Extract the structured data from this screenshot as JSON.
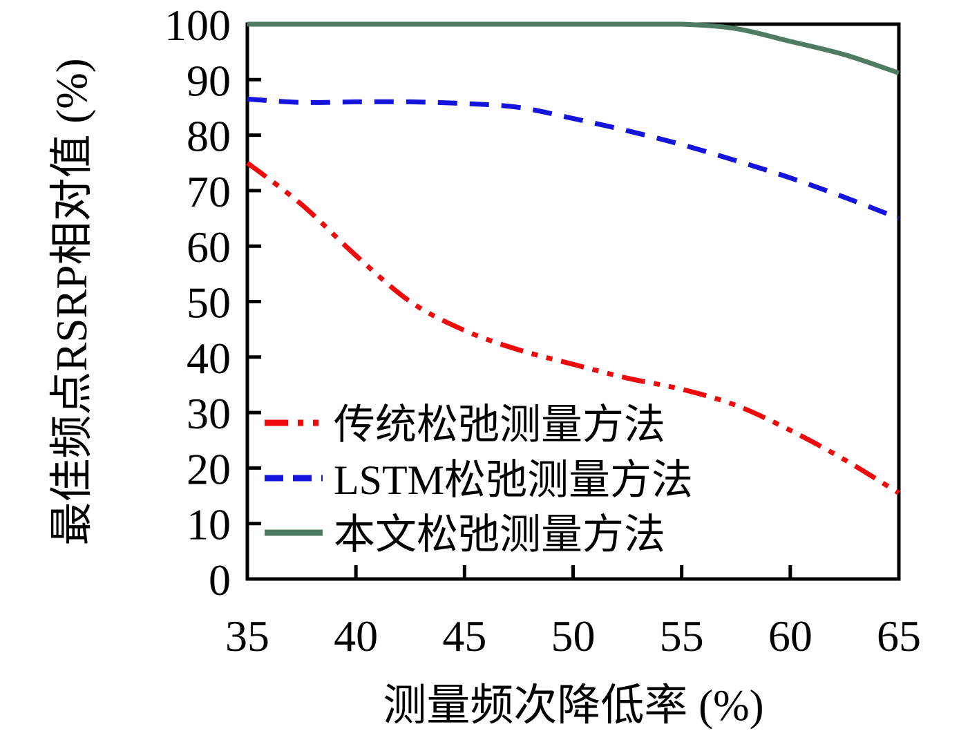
{
  "figure": {
    "background": "#ffffff",
    "axis_color": "#000000"
  },
  "chart_data": {
    "type": "line",
    "title": "",
    "xlabel": "测量频次降低率 (%)",
    "ylabel": "最佳频点RSRP相对值 (%)",
    "xlim": [
      35,
      65
    ],
    "ylim": [
      0,
      100
    ],
    "xticks": [
      35,
      40,
      45,
      50,
      55,
      60,
      65
    ],
    "yticks": [
      0,
      10,
      20,
      30,
      40,
      50,
      60,
      70,
      80,
      90,
      100
    ],
    "grid": false,
    "legend_position": "inside-lower-left",
    "x": [
      35,
      37.5,
      40,
      42.5,
      45,
      47.5,
      50,
      52.5,
      55,
      57.5,
      60,
      62.5,
      65
    ],
    "series": [
      {
        "name": "传统松弛测量方法",
        "color": "#ee0a0a",
        "dash": "dashdotdot",
        "values": [
          75,
          67.5,
          58.3,
          50.0,
          44.8,
          41.3,
          38.7,
          36.2,
          34.2,
          31.3,
          26.8,
          21.5,
          15.5
        ]
      },
      {
        "name": "LSTM松弛测量方法",
        "color": "#1414dd",
        "dash": "dashed",
        "values": [
          86.5,
          85.9,
          86.0,
          86.0,
          85.7,
          85.0,
          83.0,
          80.8,
          78.3,
          75.4,
          72.3,
          68.8,
          65.0
        ]
      },
      {
        "name": "本文松弛测量方法",
        "color": "#4d7c62",
        "dash": "solid",
        "values": [
          100,
          100,
          100,
          100,
          100,
          100,
          100,
          100,
          100,
          99.2,
          96.9,
          94.5,
          91.2
        ]
      }
    ]
  }
}
